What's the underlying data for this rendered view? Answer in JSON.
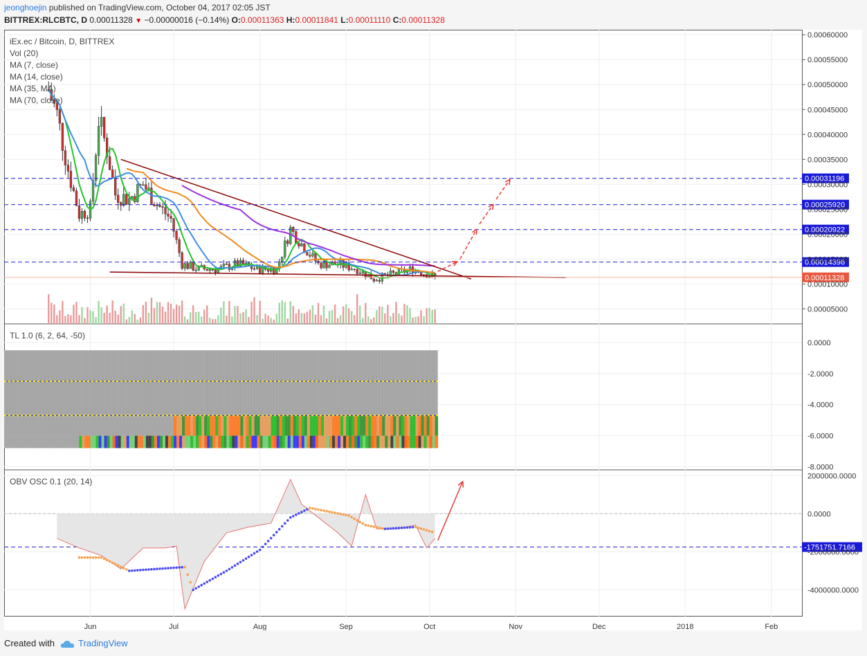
{
  "header": {
    "author": "jeonghoejin",
    "published_text": "published on TradingView.com, October 04, 2017 02:05 JST",
    "symbol": "BITTREX:RLCBTC, D",
    "last": "0.00011328",
    "change_arrow": "▼",
    "change": "−0.00000016 (−0.14%)",
    "o_label": "O:",
    "o_value": "0.00011363",
    "h_label": "H:",
    "h_value": "0.00011841",
    "l_label": "L:",
    "l_value": "0.00011110",
    "c_label": "C:",
    "c_value": "0.00011328"
  },
  "legend": [
    "iEx.ec / Bitcoin, D, BITTREX",
    "Vol (20)",
    "MA (7, close)",
    "MA (14, close)",
    "MA (35, MA)",
    "MA (70, close)"
  ],
  "pane2_title": "TL 1.0 (6, 2, 64, -50)",
  "pane3_title": "OBV OSC 0.1 (20, 14)",
  "footer": {
    "created": "Created with",
    "brand": "TradingView"
  },
  "colors": {
    "up": "#4caf50",
    "down": "#d32f2f",
    "ma7": "#22c42a",
    "ma14": "#3f8ee0",
    "ma35": "#f08a1e",
    "ma70": "#9b30e0",
    "trend": "#8b0000",
    "level": "#1a1ad6",
    "arrow": "#e53935"
  },
  "chart_data": [
    {
      "type": "candlestick",
      "title": "iEx.ec / Bitcoin, D, BITTREX",
      "x_ticks": [
        "Jun",
        "Jul",
        "Aug",
        "Sep",
        "Oct",
        "Nov",
        "Dec",
        "2018",
        "Feb"
      ],
      "y_ticks": [
        "0.00060000",
        "0.00055000",
        "0.00050000",
        "0.00045000",
        "0.00040000",
        "0.00035000",
        "0.00030000",
        "0.00025000",
        "0.00020000",
        "0.00015000",
        "0.00010000",
        "0.00005000"
      ],
      "ylim": [
        2e-05,
        0.00061
      ],
      "close_series": [
        [
          "2017-05-17",
          0.00049
        ],
        [
          "2017-05-20",
          0.00044
        ],
        [
          "2017-05-24",
          0.00033
        ],
        [
          "2017-05-28",
          0.00024
        ],
        [
          "2017-06-01",
          0.00025
        ],
        [
          "2017-06-04",
          0.00043
        ],
        [
          "2017-06-07",
          0.00037
        ],
        [
          "2017-06-10",
          0.00028
        ],
        [
          "2017-06-15",
          0.00027
        ],
        [
          "2017-06-20",
          0.0003
        ],
        [
          "2017-06-25",
          0.00026
        ],
        [
          "2017-06-30",
          0.00023
        ],
        [
          "2017-07-04",
          0.00014
        ],
        [
          "2017-07-10",
          0.00013
        ],
        [
          "2017-07-17",
          0.00013
        ],
        [
          "2017-07-24",
          0.00014
        ],
        [
          "2017-07-31",
          0.00013
        ],
        [
          "2017-08-07",
          0.00013
        ],
        [
          "2017-08-12",
          0.00021
        ],
        [
          "2017-08-16",
          0.00018
        ],
        [
          "2017-08-22",
          0.00014
        ],
        [
          "2017-08-29",
          0.00014
        ],
        [
          "2017-09-05",
          0.00013
        ],
        [
          "2017-09-11",
          0.00011
        ],
        [
          "2017-09-18",
          0.00012
        ],
        [
          "2017-09-25",
          0.00013
        ],
        [
          "2017-10-03",
          0.00011328
        ]
      ],
      "price_levels": [
        "0.00031196",
        "0.00025920",
        "0.00020922",
        "0.00014396"
      ],
      "last_price": "0.00011328",
      "moving_averages": [
        "MA (7, close)",
        "MA (14, close)",
        "MA (35, MA)",
        "MA (70, close)"
      ]
    },
    {
      "type": "heatmap",
      "title": "TL 1.0 (6, 2, 64, -50)",
      "y_ticks": [
        "0.0000",
        "-2.0000",
        "-4.0000",
        "-6.0000",
        "-8.0000"
      ],
      "ylim": [
        -8.2,
        1.2
      ],
      "bands": [
        -0.5,
        -2.5,
        -4.7,
        -6.8
      ]
    },
    {
      "type": "line",
      "title": "OBV OSC 0.1 (20, 14)",
      "y_ticks": [
        "2000000.0000",
        "0.0000",
        "-2000000.0000",
        "-4000000.0000"
      ],
      "ylim": [
        -5400000,
        2300000
      ],
      "level_label": "-1751751.7166",
      "osc": [
        [
          "2017-05-20",
          -1300000
        ],
        [
          "2017-05-28",
          -1800000
        ],
        [
          "2017-06-05",
          -2200000
        ],
        [
          "2017-06-12",
          -2900000
        ],
        [
          "2017-06-20",
          -1800000
        ],
        [
          "2017-06-28",
          -1800000
        ],
        [
          "2017-07-02",
          -1700000
        ],
        [
          "2017-07-05",
          -5000000
        ],
        [
          "2017-07-12",
          -2500000
        ],
        [
          "2017-07-20",
          -1000000
        ],
        [
          "2017-07-28",
          -700000
        ],
        [
          "2017-08-05",
          -500000
        ],
        [
          "2017-08-12",
          1800000
        ],
        [
          "2017-08-16",
          500000
        ],
        [
          "2017-08-22",
          -200000
        ],
        [
          "2017-08-29",
          -1000000
        ],
        [
          "2017-09-03",
          -1700000
        ],
        [
          "2017-09-08",
          1000000
        ],
        [
          "2017-09-12",
          -800000
        ],
        [
          "2017-09-19",
          -800000
        ],
        [
          "2017-09-26",
          -600000
        ],
        [
          "2017-09-30",
          -1800000
        ],
        [
          "2017-10-03",
          -1300000
        ]
      ],
      "signal": [
        [
          "2017-05-28",
          -2300000
        ],
        [
          "2017-06-05",
          -2300000
        ],
        [
          "2017-06-15",
          -3000000
        ],
        [
          "2017-06-25",
          -2900000
        ],
        [
          "2017-07-05",
          -2800000
        ],
        [
          "2017-07-08",
          -4000000
        ],
        [
          "2017-07-20",
          -3000000
        ],
        [
          "2017-08-01",
          -1900000
        ],
        [
          "2017-08-12",
          -200000
        ],
        [
          "2017-08-19",
          300000
        ],
        [
          "2017-08-26",
          100000
        ],
        [
          "2017-09-02",
          -100000
        ],
        [
          "2017-09-08",
          -600000
        ],
        [
          "2017-09-15",
          -800000
        ],
        [
          "2017-09-26",
          -700000
        ],
        [
          "2017-10-03",
          -1000000
        ]
      ]
    }
  ]
}
